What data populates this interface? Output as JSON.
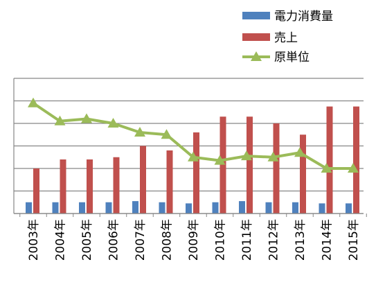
{
  "chart_data": {
    "type": "bar",
    "categories": [
      "2003年",
      "2004年",
      "2005年",
      "2006年",
      "2007年",
      "2008年",
      "2009年",
      "2010年",
      "2011年",
      "2012年",
      "2013年",
      "2014年",
      "2015年"
    ],
    "series": [
      {
        "name": "電力消費量",
        "type": "bar",
        "color": "#4f81bd",
        "values": [
          0.5,
          0.5,
          0.5,
          0.5,
          0.55,
          0.5,
          0.45,
          0.5,
          0.55,
          0.5,
          0.5,
          0.45,
          0.45
        ]
      },
      {
        "name": "売上",
        "type": "bar",
        "color": "#c0504d",
        "values": [
          2.0,
          2.4,
          2.4,
          2.5,
          3.0,
          2.8,
          3.6,
          4.3,
          4.3,
          4.0,
          3.5,
          4.75,
          4.75
        ]
      },
      {
        "name": "原単位",
        "type": "line",
        "color": "#9bbb59",
        "marker": "triangle",
        "values": [
          4.9,
          4.1,
          4.2,
          4.0,
          3.6,
          3.5,
          2.5,
          2.35,
          2.55,
          2.5,
          2.7,
          2.0,
          2.0
        ]
      }
    ],
    "ylim": [
      0,
      6
    ],
    "yticks": [
      0,
      1,
      2,
      3,
      4,
      5,
      6
    ],
    "y_tick_labels_visible": false,
    "grid": true,
    "legend": "top-right"
  }
}
